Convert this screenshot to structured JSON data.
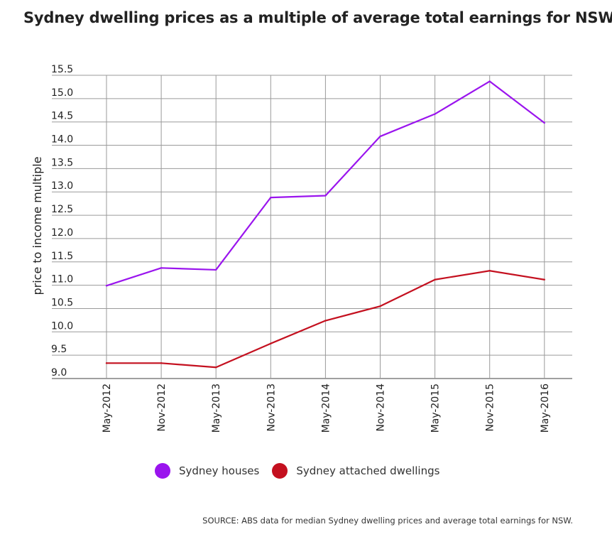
{
  "chart_data": {
    "type": "line",
    "title": "Sydney dwelling prices as a multiple of average total earnings for NSW",
    "xlabel": "",
    "ylabel": "price to income multiple",
    "categories": [
      "May-2012",
      "Nov-2012",
      "May-2013",
      "Nov-2013",
      "May-2014",
      "Nov-2014",
      "May-2015",
      "Nov-2015",
      "May-2016"
    ],
    "ylim": [
      9.0,
      15.5
    ],
    "yticks": [
      "9.0",
      "9.5",
      "10.0",
      "10.5",
      "11.0",
      "11.5",
      "12.0",
      "12.5",
      "13.0",
      "13.5",
      "14.0",
      "14.5",
      "15.0",
      "15.5"
    ],
    "grid": true,
    "legend_position": "bottom",
    "series": [
      {
        "name": "Sydney houses",
        "color": "#9a14ee",
        "values": [
          10.99,
          11.37,
          11.33,
          12.88,
          12.92,
          14.19,
          14.67,
          15.37,
          14.48
        ]
      },
      {
        "name": "Sydney attached dwellings",
        "color": "#c4101f",
        "values": [
          9.33,
          9.33,
          9.24,
          9.75,
          10.24,
          10.55,
          11.12,
          11.31,
          11.12
        ]
      }
    ],
    "source": "SOURCE: ABS data for median Sydney dwelling prices and average total earnings for NSW."
  }
}
